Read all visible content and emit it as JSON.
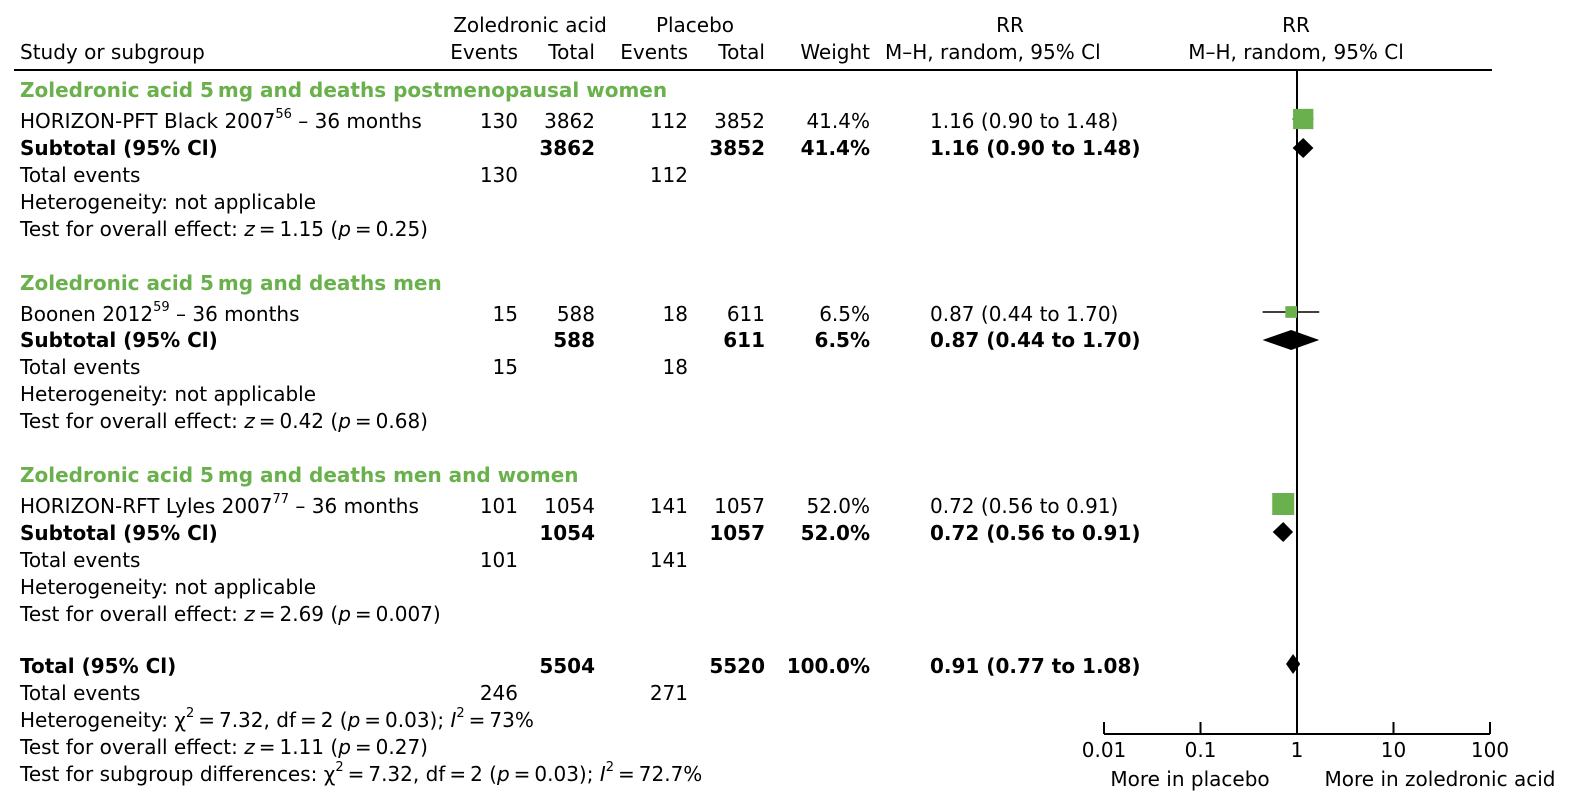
{
  "header": {
    "zol_group": "Zoledronic acid",
    "pla_group": "Placebo",
    "rr_col": "RR",
    "rr_plot": "RR",
    "study": "Study or subgroup",
    "zol_events": "Events",
    "zol_total": "Total",
    "pla_events": "Events",
    "pla_total": "Total",
    "weight": "Weight",
    "rr_method": "M–H, random, 95% Cl",
    "rr_plot_method": "M–H, random, 95% Cl"
  },
  "subgroups": [
    {
      "title": "Zoledronic acid 5 mg and deaths postmenopausal women",
      "study_name": "HORIZON-PFT Black 2007",
      "study_ref": "56",
      "study_suffix": " – 36 months",
      "zol_events": "130",
      "zol_total": "3862",
      "pla_events": "112",
      "pla_total": "3852",
      "weight": "41.4%",
      "rr": "1.16 (0.90 to 1.48)",
      "subtotal_label": "Subtotal (95% Cl)",
      "sub_zol_total": "3862",
      "sub_pla_total": "3852",
      "sub_weight": "41.4%",
      "sub_rr": "1.16 (0.90 to 1.48)",
      "total_events_label": "Total events",
      "te_zol": "130",
      "te_pla": "112",
      "heterogeneity": "Heterogeneity: not applicable",
      "overall_prefix": "Test for overall effect: ",
      "overall_z": "z",
      "overall_mid": " = 1.15 (",
      "overall_p": "p",
      "overall_end": " = 0.25)"
    },
    {
      "title": "Zoledronic acid 5 mg and deaths men",
      "study_name": "Boonen 2012",
      "study_ref": "59",
      "study_suffix": " – 36 months",
      "zol_events": "15",
      "zol_total": "588",
      "pla_events": "18",
      "pla_total": "611",
      "weight": "6.5%",
      "rr": "0.87 (0.44 to 1.70)",
      "subtotal_label": "Subtotal (95% Cl)",
      "sub_zol_total": "588",
      "sub_pla_total": "611",
      "sub_weight": "6.5%",
      "sub_rr": "0.87 (0.44 to 1.70)",
      "total_events_label": "Total events",
      "te_zol": "15",
      "te_pla": "18",
      "heterogeneity": "Heterogeneity: not applicable",
      "overall_prefix": "Test for overall effect: ",
      "overall_z": "z",
      "overall_mid": " = 0.42 (",
      "overall_p": "p",
      "overall_end": " = 0.68)"
    },
    {
      "title": "Zoledronic acid 5 mg and deaths men and women",
      "study_name": "HORIZON-RFT Lyles 2007",
      "study_ref": "77",
      "study_suffix": " – 36 months",
      "zol_events": "101",
      "zol_total": "1054",
      "pla_events": "141",
      "pla_total": "1057",
      "weight": "52.0%",
      "rr": "0.72 (0.56 to 0.91)",
      "subtotal_label": "Subtotal (95% Cl)",
      "sub_zol_total": "1054",
      "sub_pla_total": "1057",
      "sub_weight": "52.0%",
      "sub_rr": "0.72 (0.56 to 0.91)",
      "total_events_label": "Total events",
      "te_zol": "101",
      "te_pla": "141",
      "heterogeneity": "Heterogeneity: not applicable",
      "overall_prefix": "Test for overall effect: ",
      "overall_z": "z",
      "overall_mid": " = 2.69 (",
      "overall_p": "p",
      "overall_end": " = 0.007)"
    }
  ],
  "total": {
    "label": "Total (95% Cl)",
    "zol_total": "5504",
    "pla_total": "5520",
    "weight": "100.0%",
    "rr": "0.91 (0.77 to 1.08)",
    "events_label": "Total events",
    "te_zol": "246",
    "te_pla": "271",
    "het_prefix": "Heterogeneity: ",
    "het_chi": "χ",
    "het_sup2": "2",
    "het_mid": " = 7.32, df = 2 (",
    "het_p": "p",
    "het_mid2": " = 0.03); ",
    "het_i": "I",
    "het_sup2b": "2",
    "het_end": " = 73%",
    "overall_prefix": "Test for overall effect: ",
    "overall_z": "z",
    "overall_mid": " = 1.11 (",
    "overall_p": "p",
    "overall_end": " = 0.27)",
    "sub_prefix": "Test for subgroup differences: ",
    "sub_chi": "χ",
    "sub_sup2": "2",
    "sub_mid": " = 7.32, df = 2 (",
    "sub_p": "p",
    "sub_mid2": " = 0.03); ",
    "sub_i": "I",
    "sub_sup2b": "2",
    "sub_end": " = 72.7%"
  },
  "chart_data": {
    "type": "forest",
    "scale": "log",
    "x_ticks": [
      "0.01",
      "0.1",
      "1",
      "10",
      "100"
    ],
    "x_range": [
      0.01,
      100
    ],
    "reference_line": 1,
    "favours_left": "More in placebo",
    "favours_right": "More in zoledronic acid",
    "colors": {
      "study": "#6ab04c",
      "summary": "#000000"
    },
    "studies": [
      {
        "name": "HORIZON-PFT Black 2007",
        "rr": 1.16,
        "lo": 0.9,
        "hi": 1.48,
        "weight": 41.4
      },
      {
        "name": "Boonen 2012",
        "rr": 0.87,
        "lo": 0.44,
        "hi": 1.7,
        "weight": 6.5
      },
      {
        "name": "HORIZON-RFT Lyles 2007",
        "rr": 0.72,
        "lo": 0.56,
        "hi": 0.91,
        "weight": 52.0
      }
    ],
    "subtotals": [
      {
        "rr": 1.16,
        "lo": 0.9,
        "hi": 1.48
      },
      {
        "rr": 0.87,
        "lo": 0.44,
        "hi": 1.7
      },
      {
        "rr": 0.72,
        "lo": 0.56,
        "hi": 0.91
      }
    ],
    "overall": {
      "rr": 0.91,
      "lo": 0.77,
      "hi": 1.08
    }
  }
}
